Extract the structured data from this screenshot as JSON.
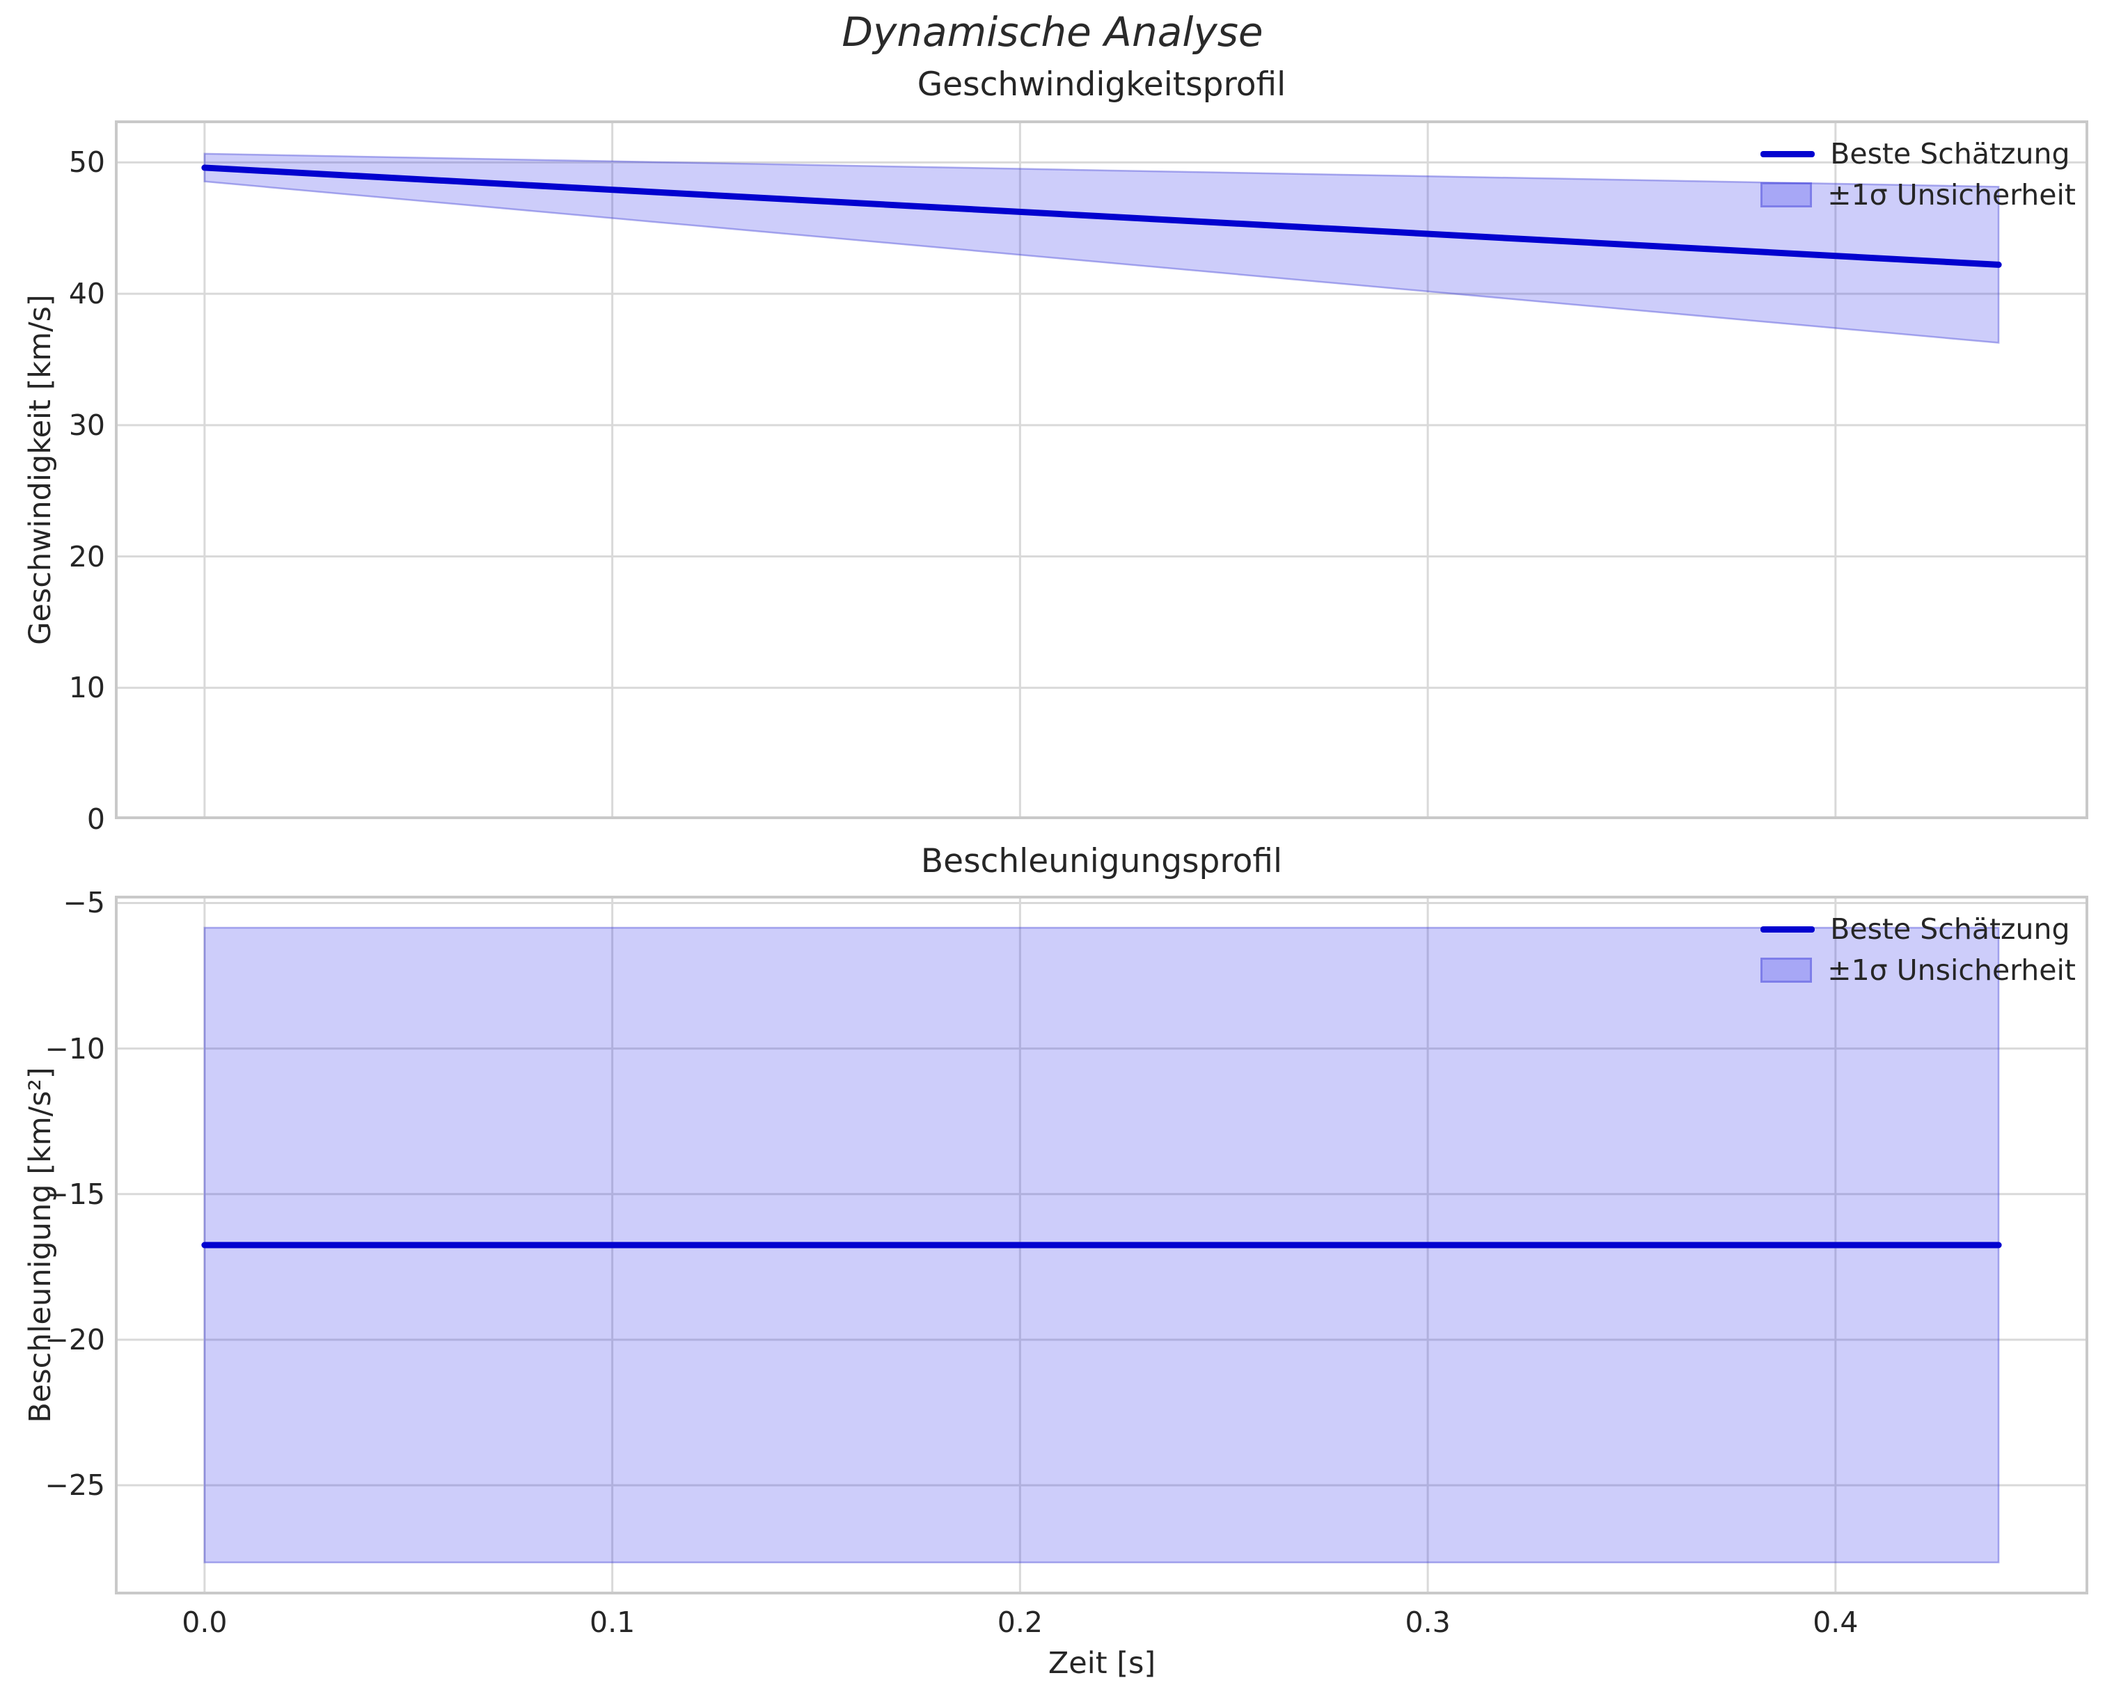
{
  "figure": {
    "suptitle": "Dynamische Analyse",
    "background_color": "#ffffff",
    "line_color": "#0202cf",
    "band_fill_color": "rgba(45,45,235,0.24)",
    "band_edge_color": "rgba(70,70,215,0.42)",
    "grid_color": "#d9d9d9",
    "spine_color": "#c9c9c9",
    "text_color": "#262626"
  },
  "chart_data": [
    {
      "type": "line",
      "title": "Geschwindigkeitsprofil",
      "xlabel": "",
      "ylabel": "Geschwindigkeit [km/s]",
      "xlim": [
        -0.022,
        0.462
      ],
      "ylim": [
        0,
        53.2
      ],
      "grid": true,
      "legend_position": "upper right",
      "xtick_values": [
        0.0,
        0.1,
        0.2,
        0.3,
        0.4
      ],
      "xtick_labels": [
        "0.0",
        "0.1",
        "0.2",
        "0.3",
        "0.4"
      ],
      "show_xtick_labels": false,
      "ytick_values": [
        0,
        10,
        20,
        30,
        40,
        50
      ],
      "ytick_labels": [
        "0",
        "10",
        "20",
        "30",
        "40",
        "50"
      ],
      "series": [
        {
          "name": "Beste Schätzung",
          "kind": "line",
          "x": [
            0.0,
            0.11,
            0.22,
            0.33,
            0.44
          ],
          "y": [
            49.6,
            47.75,
            45.9,
            44.06,
            42.21
          ]
        },
        {
          "name": "±1σ Unsicherheit",
          "kind": "band",
          "x": [
            0.0,
            0.11,
            0.22,
            0.33,
            0.44
          ],
          "upper": [
            50.66,
            50.03,
            49.4,
            48.78,
            48.15
          ],
          "lower": [
            48.55,
            45.48,
            42.41,
            39.34,
            36.27
          ]
        }
      ]
    },
    {
      "type": "line",
      "title": "Beschleunigungsprofil",
      "xlabel": "Zeit [s]",
      "ylabel": "Beschleunigung [km/s²]",
      "xlim": [
        -0.022,
        0.462
      ],
      "ylim": [
        -28.75,
        -4.75
      ],
      "grid": true,
      "legend_position": "upper right",
      "xtick_values": [
        0.0,
        0.1,
        0.2,
        0.3,
        0.4
      ],
      "xtick_labels": [
        "0.0",
        "0.1",
        "0.2",
        "0.3",
        "0.4"
      ],
      "show_xtick_labels": true,
      "ytick_values": [
        -5,
        -10,
        -15,
        -20,
        -25
      ],
      "ytick_labels": [
        "−5",
        "−10",
        "−15",
        "−20",
        "−25"
      ],
      "series": [
        {
          "name": "Beste Schätzung",
          "kind": "line",
          "x": [
            0.0,
            0.44
          ],
          "y": [
            -16.75,
            -16.75
          ]
        },
        {
          "name": "±1σ Unsicherheit",
          "kind": "band",
          "x": [
            0.0,
            0.44
          ],
          "upper": [
            -5.85,
            -5.85
          ],
          "lower": [
            -27.65,
            -27.65
          ]
        }
      ]
    }
  ]
}
